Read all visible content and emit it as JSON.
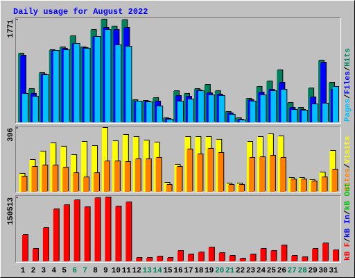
{
  "chart_data": [
    {
      "type": "bar",
      "title": "Daily usage for August 2022",
      "ylim": [
        0,
        1771
      ],
      "yticks": [
        1771
      ],
      "legend_separator": "/",
      "series": [
        {
          "name": "Hits",
          "color": "#00805c",
          "values": [
            1185,
            574,
            850,
            1244,
            1292,
            1484,
            1292,
            1592,
            1771,
            1651,
            1760,
            383,
            371,
            419,
            72,
            538,
            491,
            574,
            646,
            538,
            180,
            72,
            407,
            610,
            706,
            897,
            335,
            251,
            586,
            1065,
            682
          ]
        },
        {
          "name": "Files",
          "color": "#0000ff",
          "values": [
            1149,
            491,
            826,
            1232,
            1268,
            1352,
            1280,
            1472,
            1627,
            1592,
            1627,
            359,
            359,
            359,
            60,
            455,
            443,
            550,
            503,
            479,
            156,
            48,
            383,
            515,
            562,
            682,
            251,
            215,
            431,
            1029,
            562
          ]
        },
        {
          "name": "Pages",
          "color": "#00c0ff",
          "values": [
            491,
            443,
            814,
            1232,
            1244,
            1352,
            1268,
            1472,
            1592,
            1328,
            1304,
            359,
            347,
            275,
            48,
            359,
            395,
            538,
            467,
            455,
            132,
            36,
            359,
            467,
            538,
            562,
            215,
            203,
            311,
            323,
            610
          ]
        }
      ]
    },
    {
      "type": "bar",
      "ylim": [
        0,
        396
      ],
      "yticks": [
        396
      ],
      "legend_separator": "/",
      "series": [
        {
          "name": "Visits",
          "color": "#ffff00",
          "values": [
            112,
            198,
            250,
            301,
            280,
            228,
            310,
            284,
            396,
            314,
            353,
            340,
            318,
            306,
            56,
            168,
            340,
            340,
            340,
            323,
            52,
            52,
            310,
            340,
            357,
            344,
            86,
            86,
            73,
            120,
            254
          ]
        },
        {
          "name": "Sites",
          "color": "#ff8000",
          "values": [
            95,
            155,
            164,
            164,
            150,
            116,
            90,
            116,
            189,
            189,
            185,
            202,
            202,
            211,
            43,
            155,
            263,
            233,
            267,
            241,
            43,
            43,
            211,
            215,
            224,
            211,
            77,
            77,
            65,
            90,
            138
          ]
        }
      ]
    },
    {
      "type": "bar",
      "ylim": [
        0,
        150513
      ],
      "yticks": [
        150513
      ],
      "legend_separator": "/",
      "categories": [
        "1",
        "2",
        "3",
        "4",
        "5",
        "6",
        "7",
        "8",
        "9",
        "10",
        "11",
        "12",
        "13",
        "14",
        "15",
        "16",
        "17",
        "18",
        "19",
        "20",
        "21",
        "22",
        "23",
        "24",
        "25",
        "26",
        "27",
        "28",
        "29",
        "30",
        "31"
      ],
      "category_colors": [
        "#000000",
        "#000000",
        "#000000",
        "#000000",
        "#000000",
        "#00805c",
        "#00805c",
        "#000000",
        "#000000",
        "#000000",
        "#000000",
        "#000000",
        "#00805c",
        "#00805c",
        "#000000",
        "#000000",
        "#000000",
        "#000000",
        "#000000",
        "#00805c",
        "#00805c",
        "#000000",
        "#000000",
        "#000000",
        "#000000",
        "#000000",
        "#00805c",
        "#00805c",
        "#000000",
        "#000000",
        "#000000"
      ],
      "series": [
        {
          "name": "kB Out",
          "color": "#00c000",
          "values": [
            0,
            0,
            0,
            0,
            0,
            0,
            0,
            0,
            0,
            0,
            0,
            0,
            0,
            0,
            0,
            0,
            0,
            0,
            0,
            0,
            0,
            0,
            0,
            0,
            0,
            0,
            0,
            0,
            0,
            0,
            0
          ]
        },
        {
          "name": "kB In",
          "color": "#0000ff",
          "values": [
            0,
            0,
            0,
            0,
            0,
            0,
            0,
            0,
            0,
            0,
            0,
            0,
            0,
            0,
            0,
            0,
            0,
            0,
            0,
            0,
            0,
            0,
            0,
            0,
            0,
            0,
            0,
            0,
            0,
            0,
            0
          ]
        },
        {
          "name": "kB F",
          "color": "#ff0000",
          "values": [
            62168,
            29450,
            78527,
            122700,
            132516,
            143968,
            127608,
            148877,
            150513,
            129244,
            139061,
            8180,
            8180,
            11452,
            8180,
            24541,
            16361,
            21270,
            32722,
            19633,
            13088,
            6544,
            16361,
            29450,
            24541,
            37631,
            13088,
            9816,
            29450,
            42540,
            26177
          ]
        }
      ]
    }
  ]
}
